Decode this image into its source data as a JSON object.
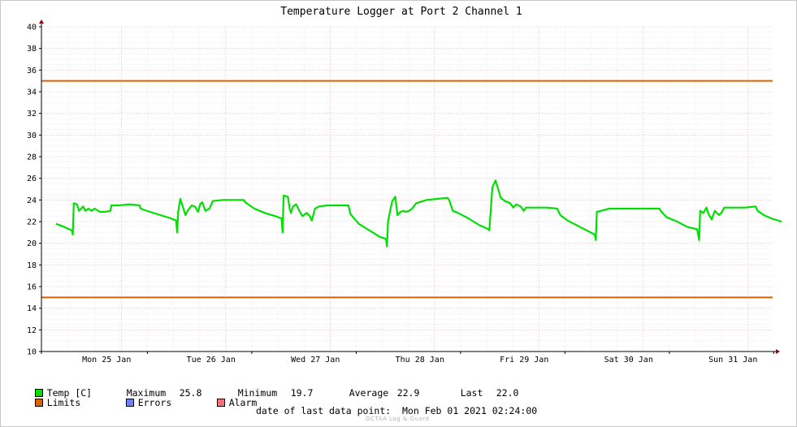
{
  "chart_data": {
    "type": "line",
    "title": "Temperature Logger at Port 2 Channel 1",
    "ylim": [
      10,
      40
    ],
    "yticks": [
      10,
      12,
      14,
      16,
      18,
      20,
      22,
      24,
      26,
      28,
      30,
      32,
      34,
      36,
      38,
      40
    ],
    "x_tick_labels": [
      "Mon 25 Jan",
      "Tue 26 Jan",
      "Wed 27 Jan",
      "Thu 28 Jan",
      "Fri 29 Jan",
      "Sat 30 Jan",
      "Sun 31 Jan"
    ],
    "x_range_days": [
      0,
      7.1
    ],
    "grid": true,
    "limits": [
      35,
      15
    ],
    "series": [
      {
        "name": "Temp [C]",
        "color": "#00e000",
        "points": [
          [
            0.0,
            21.8
          ],
          [
            0.08,
            21.5
          ],
          [
            0.15,
            21.2
          ],
          [
            0.16,
            20.8
          ],
          [
            0.17,
            23.7
          ],
          [
            0.2,
            23.6
          ],
          [
            0.22,
            23.0
          ],
          [
            0.26,
            23.4
          ],
          [
            0.28,
            23.0
          ],
          [
            0.31,
            23.2
          ],
          [
            0.34,
            23.0
          ],
          [
            0.37,
            23.2
          ],
          [
            0.42,
            22.9
          ],
          [
            0.47,
            22.9
          ],
          [
            0.52,
            23.0
          ],
          [
            0.53,
            23.5
          ],
          [
            0.6,
            23.5
          ],
          [
            0.7,
            23.6
          ],
          [
            0.8,
            23.5
          ],
          [
            0.81,
            23.2
          ],
          [
            0.9,
            22.9
          ],
          [
            1.0,
            22.6
          ],
          [
            1.1,
            22.3
          ],
          [
            1.15,
            22.1
          ],
          [
            1.16,
            21.0
          ],
          [
            1.17,
            22.9
          ],
          [
            1.19,
            24.1
          ],
          [
            1.22,
            23.2
          ],
          [
            1.24,
            22.6
          ],
          [
            1.26,
            23.0
          ],
          [
            1.3,
            23.5
          ],
          [
            1.33,
            23.4
          ],
          [
            1.36,
            22.9
          ],
          [
            1.38,
            23.6
          ],
          [
            1.4,
            23.8
          ],
          [
            1.43,
            23.0
          ],
          [
            1.47,
            23.2
          ],
          [
            1.5,
            23.9
          ],
          [
            1.6,
            24.0
          ],
          [
            1.7,
            24.0
          ],
          [
            1.8,
            24.0
          ],
          [
            1.81,
            23.8
          ],
          [
            1.9,
            23.2
          ],
          [
            2.0,
            22.8
          ],
          [
            2.1,
            22.5
          ],
          [
            2.16,
            22.3
          ],
          [
            2.17,
            21.0
          ],
          [
            2.18,
            24.4
          ],
          [
            2.22,
            24.3
          ],
          [
            2.24,
            23.1
          ],
          [
            2.25,
            22.8
          ],
          [
            2.27,
            23.4
          ],
          [
            2.3,
            23.6
          ],
          [
            2.33,
            23.0
          ],
          [
            2.36,
            22.5
          ],
          [
            2.4,
            22.8
          ],
          [
            2.43,
            22.5
          ],
          [
            2.45,
            22.1
          ],
          [
            2.48,
            23.2
          ],
          [
            2.52,
            23.4
          ],
          [
            2.6,
            23.5
          ],
          [
            2.7,
            23.5
          ],
          [
            2.8,
            23.5
          ],
          [
            2.82,
            22.7
          ],
          [
            2.9,
            21.8
          ],
          [
            3.0,
            21.2
          ],
          [
            3.1,
            20.6
          ],
          [
            3.16,
            20.4
          ],
          [
            3.17,
            19.7
          ],
          [
            3.18,
            22.0
          ],
          [
            3.2,
            23.0
          ],
          [
            3.22,
            23.9
          ],
          [
            3.25,
            24.3
          ],
          [
            3.27,
            22.6
          ],
          [
            3.3,
            22.9
          ],
          [
            3.33,
            23.0
          ],
          [
            3.35,
            22.9
          ],
          [
            3.38,
            23.0
          ],
          [
            3.41,
            23.2
          ],
          [
            3.45,
            23.7
          ],
          [
            3.55,
            24.0
          ],
          [
            3.65,
            24.1
          ],
          [
            3.75,
            24.2
          ],
          [
            3.77,
            23.9
          ],
          [
            3.8,
            23.0
          ],
          [
            3.85,
            22.8
          ],
          [
            3.95,
            22.3
          ],
          [
            4.05,
            21.7
          ],
          [
            4.14,
            21.3
          ],
          [
            4.15,
            21.2
          ],
          [
            4.18,
            25.2
          ],
          [
            4.21,
            25.8
          ],
          [
            4.26,
            24.2
          ],
          [
            4.3,
            23.9
          ],
          [
            4.35,
            23.7
          ],
          [
            4.38,
            23.3
          ],
          [
            4.41,
            23.6
          ],
          [
            4.45,
            23.4
          ],
          [
            4.48,
            23.0
          ],
          [
            4.5,
            23.3
          ],
          [
            4.6,
            23.3
          ],
          [
            4.7,
            23.3
          ],
          [
            4.8,
            23.2
          ],
          [
            4.83,
            22.6
          ],
          [
            4.9,
            22.1
          ],
          [
            5.0,
            21.6
          ],
          [
            5.1,
            21.1
          ],
          [
            5.16,
            20.8
          ],
          [
            5.17,
            20.3
          ],
          [
            5.18,
            22.9
          ],
          [
            5.22,
            23.0
          ],
          [
            5.3,
            23.2
          ],
          [
            5.4,
            23.2
          ],
          [
            5.5,
            23.2
          ],
          [
            5.6,
            23.2
          ],
          [
            5.7,
            23.2
          ],
          [
            5.78,
            23.2
          ],
          [
            5.8,
            22.9
          ],
          [
            5.85,
            22.4
          ],
          [
            5.95,
            22.0
          ],
          [
            6.05,
            21.5
          ],
          [
            6.14,
            21.3
          ],
          [
            6.16,
            20.3
          ],
          [
            6.17,
            23.0
          ],
          [
            6.2,
            22.8
          ],
          [
            6.23,
            23.3
          ],
          [
            6.25,
            22.7
          ],
          [
            6.28,
            22.2
          ],
          [
            6.31,
            23.0
          ],
          [
            6.35,
            22.6
          ],
          [
            6.38,
            22.9
          ],
          [
            6.4,
            23.3
          ],
          [
            6.5,
            23.3
          ],
          [
            6.6,
            23.3
          ],
          [
            6.7,
            23.4
          ],
          [
            6.72,
            23.0
          ],
          [
            6.78,
            22.6
          ],
          [
            6.85,
            22.3
          ],
          [
            6.95,
            22.0
          ]
        ]
      }
    ],
    "legend": {
      "temp_label": "Temp [C]",
      "maximum_label": "Maximum",
      "maximum_value": "25.8",
      "minimum_label": "Minimum",
      "minimum_value": "19.7",
      "average_label": "Average",
      "average_value": "22.9",
      "last_label": "Last",
      "last_value": "22.0",
      "limits_label": "Limits",
      "errors_label": "Errors",
      "alarm_label": "Alarm"
    },
    "colors": {
      "temp": "#00e000",
      "limits": "#e06000",
      "errors": "#7080ff",
      "alarm": "#ff7070"
    },
    "last_data_point": "date of last data point:  Mon Feb 01 2021 02:24:00",
    "watermark": "OCTAA Log & Guard"
  }
}
